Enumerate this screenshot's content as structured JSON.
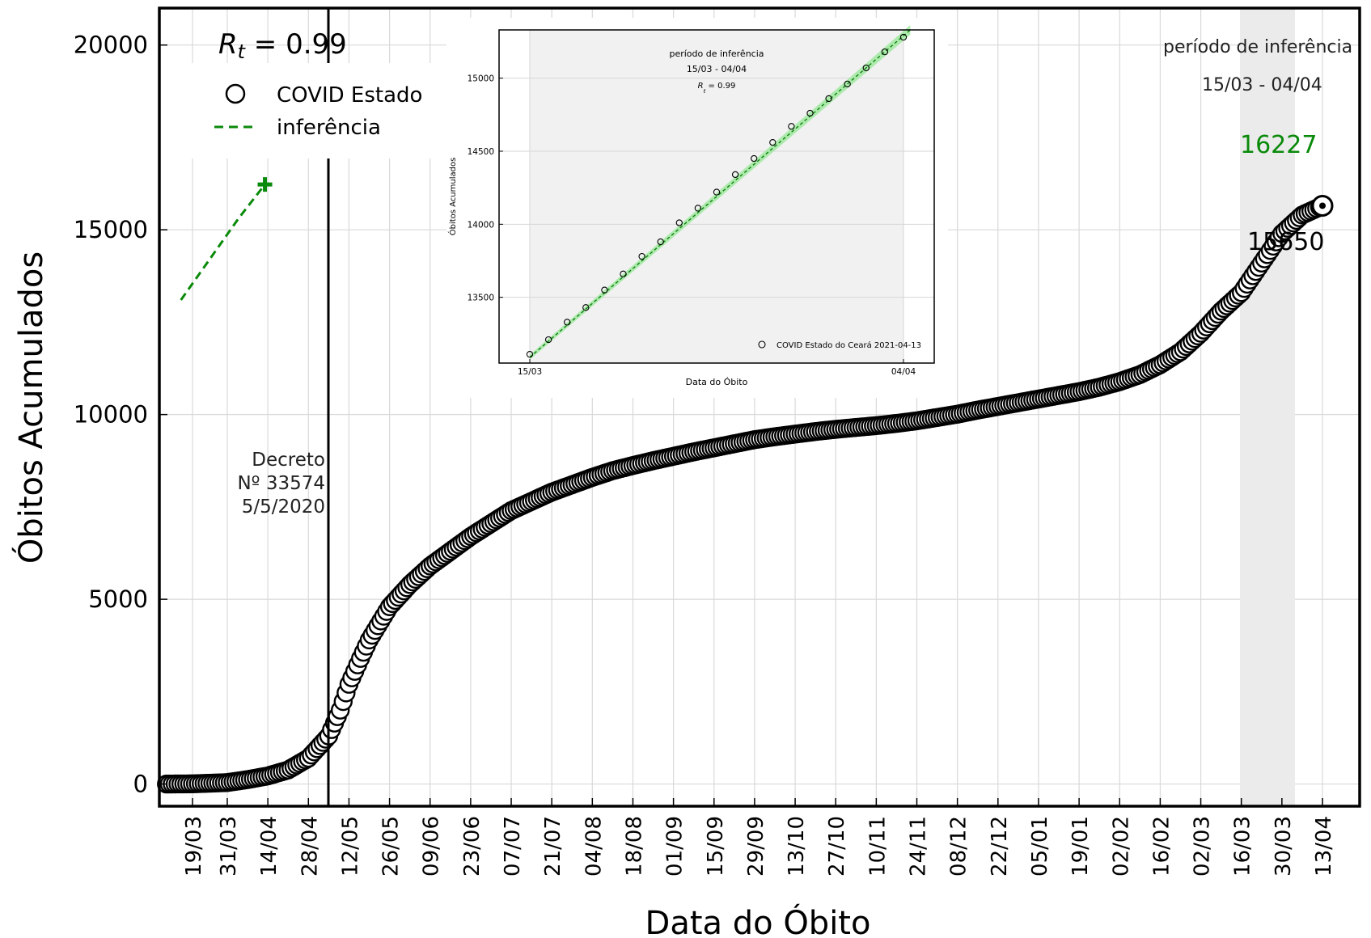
{
  "chart_data": [
    {
      "type": "scatter",
      "title": "",
      "xlabel": "Data do Óbito",
      "ylabel": "Óbitos Acumulados",
      "x_tick_labels": [
        "19/03",
        "31/03",
        "14/04",
        "28/04",
        "12/05",
        "26/05",
        "09/06",
        "23/06",
        "07/07",
        "21/07",
        "04/08",
        "18/08",
        "01/09",
        "15/09",
        "29/09",
        "13/10",
        "27/10",
        "10/11",
        "24/11",
        "08/12",
        "22/12",
        "05/01",
        "19/01",
        "02/02",
        "16/02",
        "02/03",
        "16/03",
        "30/03",
        "13/04"
      ],
      "y_ticks": [
        0,
        5000,
        10000,
        15000,
        20000
      ],
      "ylim": [
        -600,
        21000
      ],
      "grid": true,
      "legend_position": "top-left",
      "legend": [
        "COVID Estado",
        "inferência"
      ],
      "rt_label": "R_t = 0.99",
      "decree_annotation": [
        "Decreto",
        "Nº 33574",
        "5/5/2020"
      ],
      "decree_date": "05/05",
      "inference_period_label": "período de inferência",
      "inference_period_dates": "15/03 - 04/04",
      "last_observed_value": "15650",
      "projected_value": "16227",
      "series": [
        {
          "name": "COVID Estado",
          "points": [
            [
              "10/03",
              0
            ],
            [
              "19/03",
              5
            ],
            [
              "31/03",
              40
            ],
            [
              "07/04",
              120
            ],
            [
              "14/04",
              220
            ],
            [
              "21/04",
              380
            ],
            [
              "28/04",
              700
            ],
            [
              "05/05",
              1300
            ],
            [
              "09/05",
              2000
            ],
            [
              "12/05",
              2700
            ],
            [
              "16/05",
              3400
            ],
            [
              "19/05",
              3900
            ],
            [
              "26/05",
              4800
            ],
            [
              "02/06",
              5400
            ],
            [
              "09/06",
              5900
            ],
            [
              "16/06",
              6300
            ],
            [
              "23/06",
              6700
            ],
            [
              "30/06",
              7050
            ],
            [
              "07/07",
              7400
            ],
            [
              "14/07",
              7650
            ],
            [
              "21/07",
              7900
            ],
            [
              "28/07",
              8100
            ],
            [
              "04/08",
              8300
            ],
            [
              "11/08",
              8480
            ],
            [
              "18/08",
              8620
            ],
            [
              "25/08",
              8750
            ],
            [
              "01/09",
              8870
            ],
            [
              "08/09",
              8990
            ],
            [
              "15/09",
              9100
            ],
            [
              "22/09",
              9210
            ],
            [
              "29/09",
              9320
            ],
            [
              "06/10",
              9400
            ],
            [
              "13/10",
              9470
            ],
            [
              "20/10",
              9540
            ],
            [
              "27/10",
              9600
            ],
            [
              "03/11",
              9650
            ],
            [
              "10/11",
              9700
            ],
            [
              "17/11",
              9760
            ],
            [
              "24/11",
              9830
            ],
            [
              "01/12",
              9920
            ],
            [
              "08/12",
              10010
            ],
            [
              "15/12",
              10120
            ],
            [
              "22/12",
              10220
            ],
            [
              "29/12",
              10320
            ],
            [
              "05/01",
              10420
            ],
            [
              "12/01",
              10520
            ],
            [
              "19/01",
              10620
            ],
            [
              "26/01",
              10740
            ],
            [
              "02/02",
              10890
            ],
            [
              "09/02",
              11080
            ],
            [
              "16/02",
              11350
            ],
            [
              "23/02",
              11700
            ],
            [
              "02/03",
              12200
            ],
            [
              "09/03",
              12800
            ],
            [
              "16/03",
              13300
            ],
            [
              "23/03",
              14100
            ],
            [
              "30/03",
              14900
            ],
            [
              "06/04",
              15400
            ],
            [
              "13/04",
              15650
            ]
          ]
        },
        {
          "name": "inferência",
          "points": [
            [
              "15/03",
              13100
            ],
            [
              "04/04",
              15320
            ],
            [
              "13/04",
              16227
            ]
          ]
        }
      ]
    },
    {
      "type": "scatter",
      "title": "",
      "xlabel": "Data do Óbito",
      "ylabel": "Óbitos Acumulados",
      "x_tick_labels": [
        "15/03",
        "04/04"
      ],
      "y_ticks": [
        13500,
        14000,
        14500,
        15000
      ],
      "ylim": [
        13050,
        15330
      ],
      "grid": true,
      "legend_position": "bottom-right",
      "legend": [
        "COVID Estado do Ceará 2021-04-13"
      ],
      "annotation_title": "período de inferência",
      "annotation_dates": "15/03 - 04/04",
      "rt_label": "R_t = 0.99",
      "series": [
        {
          "name": "COVID Estado do Ceará 2021-04-13",
          "points": [
            [
              "15/03",
              13110
            ],
            [
              "16/03",
              13210
            ],
            [
              "17/03",
              13330
            ],
            [
              "18/03",
              13430
            ],
            [
              "19/03",
              13550
            ],
            [
              "20/03",
              13660
            ],
            [
              "21/03",
              13780
            ],
            [
              "22/03",
              13880
            ],
            [
              "23/03",
              14010
            ],
            [
              "24/03",
              14110
            ],
            [
              "25/03",
              14220
            ],
            [
              "26/03",
              14340
            ],
            [
              "27/03",
              14450
            ],
            [
              "28/03",
              14560
            ],
            [
              "29/03",
              14670
            ],
            [
              "30/03",
              14760
            ],
            [
              "31/03",
              14860
            ],
            [
              "01/04",
              14960
            ],
            [
              "02/04",
              15070
            ],
            [
              "03/04",
              15180
            ],
            [
              "04/04",
              15280
            ]
          ]
        },
        {
          "name": "inferência",
          "points": [
            [
              "15/03",
              13090
            ],
            [
              "04/04",
              15290
            ]
          ]
        }
      ]
    }
  ]
}
